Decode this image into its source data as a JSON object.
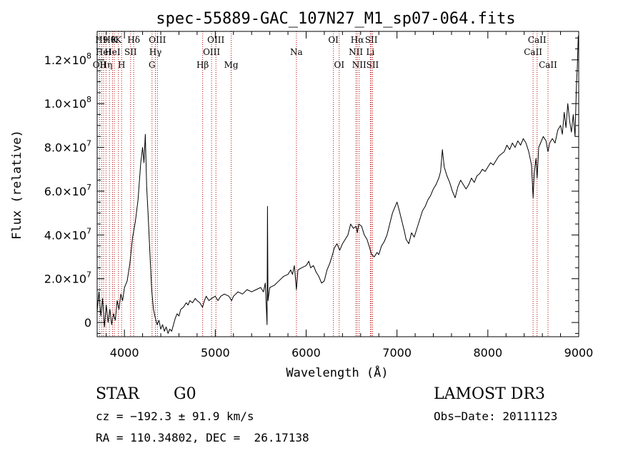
{
  "chart_data": {
    "type": "line",
    "title": "spec-55889-GAC_107N27_M1_sp07-064.fits",
    "xlabel": "Wavelength (Å)",
    "ylabel": "Flux (relative)",
    "xlim": [
      3700,
      9000
    ],
    "ylim": [
      -6500000,
      133000000
    ],
    "x_ticks": [
      {
        "value": 4000,
        "label": "4000"
      },
      {
        "value": 5000,
        "label": "5000"
      },
      {
        "value": 6000,
        "label": "6000"
      },
      {
        "value": 7000,
        "label": "7000"
      },
      {
        "value": 8000,
        "label": "8000"
      },
      {
        "value": 9000,
        "label": "9000"
      }
    ],
    "y_ticks": [
      {
        "value": 0,
        "mantissa": "0",
        "exp": ""
      },
      {
        "value": 20000000,
        "mantissa": "2.0×10",
        "exp": "7"
      },
      {
        "value": 40000000,
        "mantissa": "4.0×10",
        "exp": "7"
      },
      {
        "value": 60000000,
        "mantissa": "6.0×10",
        "exp": "7"
      },
      {
        "value": 80000000,
        "mantissa": "8.0×10",
        "exp": "7"
      },
      {
        "value": 100000000,
        "mantissa": "1.0×10",
        "exp": "8"
      },
      {
        "value": 120000000,
        "mantissa": "1.2×10",
        "exp": "8"
      }
    ],
    "series": [
      {
        "name": "flux",
        "points": [
          [
            3700,
            5000000
          ],
          [
            3720,
            14000000
          ],
          [
            3740,
            3000000
          ],
          [
            3760,
            11000000
          ],
          [
            3780,
            -2000000
          ],
          [
            3800,
            8000000
          ],
          [
            3820,
            0
          ],
          [
            3840,
            6000000
          ],
          [
            3860,
            -1000000
          ],
          [
            3880,
            4000000
          ],
          [
            3900,
            1000000
          ],
          [
            3920,
            10000000
          ],
          [
            3940,
            6000000
          ],
          [
            3960,
            13000000
          ],
          [
            3980,
            10000000
          ],
          [
            4000,
            16000000
          ],
          [
            4030,
            19000000
          ],
          [
            4060,
            27000000
          ],
          [
            4090,
            39000000
          ],
          [
            4120,
            46000000
          ],
          [
            4150,
            56000000
          ],
          [
            4180,
            73000000
          ],
          [
            4200,
            80000000
          ],
          [
            4215,
            73000000
          ],
          [
            4230,
            86000000
          ],
          [
            4245,
            62000000
          ],
          [
            4260,
            50000000
          ],
          [
            4280,
            32000000
          ],
          [
            4300,
            15000000
          ],
          [
            4320,
            6000000
          ],
          [
            4340,
            2000000
          ],
          [
            4360,
            -1000000
          ],
          [
            4380,
            1000000
          ],
          [
            4400,
            -3000000
          ],
          [
            4420,
            -1000000
          ],
          [
            4440,
            -4000000
          ],
          [
            4460,
            -2000000
          ],
          [
            4480,
            -5000000
          ],
          [
            4500,
            -3000000
          ],
          [
            4520,
            -4000000
          ],
          [
            4540,
            -1000000
          ],
          [
            4560,
            2000000
          ],
          [
            4580,
            4000000
          ],
          [
            4600,
            3000000
          ],
          [
            4620,
            6000000
          ],
          [
            4650,
            7000000
          ],
          [
            4680,
            9000000
          ],
          [
            4700,
            8000000
          ],
          [
            4720,
            10000000
          ],
          [
            4750,
            9000000
          ],
          [
            4780,
            11000000
          ],
          [
            4800,
            10000000
          ],
          [
            4830,
            9000000
          ],
          [
            4860,
            7000000
          ],
          [
            4880,
            10000000
          ],
          [
            4900,
            12000000
          ],
          [
            4930,
            10000000
          ],
          [
            4960,
            11000000
          ],
          [
            5000,
            12000000
          ],
          [
            5030,
            10000000
          ],
          [
            5060,
            12000000
          ],
          [
            5100,
            13000000
          ],
          [
            5150,
            12000000
          ],
          [
            5180,
            10000000
          ],
          [
            5200,
            12000000
          ],
          [
            5250,
            14000000
          ],
          [
            5300,
            13000000
          ],
          [
            5350,
            15000000
          ],
          [
            5400,
            14000000
          ],
          [
            5450,
            15000000
          ],
          [
            5500,
            16000000
          ],
          [
            5530,
            14000000
          ],
          [
            5550,
            18000000
          ],
          [
            5570,
            -1000000
          ],
          [
            5575,
            53000000
          ],
          [
            5580,
            10000000
          ],
          [
            5600,
            16000000
          ],
          [
            5650,
            17000000
          ],
          [
            5700,
            19000000
          ],
          [
            5750,
            21000000
          ],
          [
            5800,
            22000000
          ],
          [
            5830,
            24000000
          ],
          [
            5850,
            22000000
          ],
          [
            5870,
            26000000
          ],
          [
            5893,
            15000000
          ],
          [
            5910,
            24000000
          ],
          [
            5950,
            25000000
          ],
          [
            6000,
            26000000
          ],
          [
            6030,
            28000000
          ],
          [
            6050,
            25000000
          ],
          [
            6080,
            26000000
          ],
          [
            6110,
            23000000
          ],
          [
            6140,
            21000000
          ],
          [
            6170,
            18000000
          ],
          [
            6200,
            19000000
          ],
          [
            6230,
            24000000
          ],
          [
            6260,
            27000000
          ],
          [
            6290,
            31000000
          ],
          [
            6310,
            34000000
          ],
          [
            6340,
            36000000
          ],
          [
            6370,
            33000000
          ],
          [
            6400,
            36000000
          ],
          [
            6430,
            38000000
          ],
          [
            6460,
            40000000
          ],
          [
            6490,
            45000000
          ],
          [
            6520,
            43000000
          ],
          [
            6550,
            44000000
          ],
          [
            6563,
            41000000
          ],
          [
            6580,
            45000000
          ],
          [
            6610,
            44000000
          ],
          [
            6640,
            40000000
          ],
          [
            6670,
            38000000
          ],
          [
            6700,
            34000000
          ],
          [
            6720,
            31000000
          ],
          [
            6750,
            30000000
          ],
          [
            6780,
            32000000
          ],
          [
            6800,
            31000000
          ],
          [
            6830,
            35000000
          ],
          [
            6860,
            37000000
          ],
          [
            6890,
            40000000
          ],
          [
            6920,
            45000000
          ],
          [
            6950,
            50000000
          ],
          [
            6980,
            53000000
          ],
          [
            7000,
            55000000
          ],
          [
            7020,
            52000000
          ],
          [
            7050,
            47000000
          ],
          [
            7080,
            42000000
          ],
          [
            7100,
            38000000
          ],
          [
            7130,
            36000000
          ],
          [
            7160,
            41000000
          ],
          [
            7190,
            39000000
          ],
          [
            7220,
            43000000
          ],
          [
            7250,
            47000000
          ],
          [
            7280,
            51000000
          ],
          [
            7310,
            53000000
          ],
          [
            7340,
            56000000
          ],
          [
            7370,
            58000000
          ],
          [
            7400,
            61000000
          ],
          [
            7430,
            63000000
          ],
          [
            7460,
            66000000
          ],
          [
            7480,
            69000000
          ],
          [
            7500,
            79000000
          ],
          [
            7520,
            71000000
          ],
          [
            7550,
            67000000
          ],
          [
            7580,
            64000000
          ],
          [
            7610,
            60000000
          ],
          [
            7640,
            57000000
          ],
          [
            7670,
            62000000
          ],
          [
            7700,
            65000000
          ],
          [
            7730,
            63000000
          ],
          [
            7760,
            61000000
          ],
          [
            7790,
            63000000
          ],
          [
            7820,
            66000000
          ],
          [
            7850,
            64000000
          ],
          [
            7880,
            67000000
          ],
          [
            7910,
            68000000
          ],
          [
            7940,
            70000000
          ],
          [
            7970,
            69000000
          ],
          [
            8000,
            71000000
          ],
          [
            8030,
            73000000
          ],
          [
            8060,
            72000000
          ],
          [
            8090,
            74000000
          ],
          [
            8120,
            76000000
          ],
          [
            8150,
            77000000
          ],
          [
            8180,
            78000000
          ],
          [
            8210,
            81000000
          ],
          [
            8240,
            79000000
          ],
          [
            8270,
            82000000
          ],
          [
            8300,
            80000000
          ],
          [
            8330,
            83000000
          ],
          [
            8360,
            81000000
          ],
          [
            8390,
            84000000
          ],
          [
            8420,
            82000000
          ],
          [
            8450,
            78000000
          ],
          [
            8480,
            72000000
          ],
          [
            8498,
            57000000
          ],
          [
            8510,
            68000000
          ],
          [
            8530,
            75000000
          ],
          [
            8542,
            66000000
          ],
          [
            8560,
            80000000
          ],
          [
            8580,
            82000000
          ],
          [
            8610,
            85000000
          ],
          [
            8640,
            83000000
          ],
          [
            8662,
            78000000
          ],
          [
            8680,
            82000000
          ],
          [
            8710,
            84000000
          ],
          [
            8740,
            82000000
          ],
          [
            8770,
            88000000
          ],
          [
            8800,
            90000000
          ],
          [
            8820,
            86000000
          ],
          [
            8840,
            96000000
          ],
          [
            8860,
            89000000
          ],
          [
            8880,
            100000000
          ],
          [
            8900,
            92000000
          ],
          [
            8920,
            87000000
          ],
          [
            8940,
            95000000
          ],
          [
            8960,
            85000000
          ],
          [
            8975,
            108000000
          ],
          [
            8985,
            117000000
          ],
          [
            8995,
            131000000
          ]
        ]
      }
    ],
    "lines": [
      {
        "wavelength": 3727,
        "label": "OII",
        "row": 2
      },
      {
        "wavelength": 3750,
        "label": "H9",
        "row": 0
      },
      {
        "wavelength": 3771,
        "label": "HeI",
        "row": 1
      },
      {
        "wavelength": 3797,
        "label": "Hη",
        "row": 2
      },
      {
        "wavelength": 3835,
        "label": "Hθ",
        "row": 0
      },
      {
        "wavelength": 3869,
        "label": "HeI",
        "row": 1
      },
      {
        "wavelength": 3889,
        "label": "K",
        "row": 0
      },
      {
        "wavelength": 3934,
        "label": "K",
        "row": 0
      },
      {
        "wavelength": 3969,
        "label": "H",
        "row": 2
      },
      {
        "wavelength": 4068,
        "label": "SII",
        "row": 1
      },
      {
        "wavelength": 4102,
        "label": "Hδ",
        "row": 0
      },
      {
        "wavelength": 4304,
        "label": "G",
        "row": 2
      },
      {
        "wavelength": 4341,
        "label": "Hγ",
        "row": 1
      },
      {
        "wavelength": 4363,
        "label": "OIII",
        "row": 0
      },
      {
        "wavelength": 4861,
        "label": "Hβ",
        "row": 2
      },
      {
        "wavelength": 4959,
        "label": "OIII",
        "row": 1
      },
      {
        "wavelength": 5007,
        "label": "OIII",
        "row": 0
      },
      {
        "wavelength": 5175,
        "label": "Mg",
        "row": 2
      },
      {
        "wavelength": 5893,
        "label": "Na",
        "row": 1
      },
      {
        "wavelength": 6300,
        "label": "OI",
        "row": 0
      },
      {
        "wavelength": 6364,
        "label": "OI",
        "row": 2
      },
      {
        "wavelength": 6548,
        "label": "NII",
        "row": 1
      },
      {
        "wavelength": 6563,
        "label": "Hα",
        "row": 0
      },
      {
        "wavelength": 6584,
        "label": "NII",
        "row": 2
      },
      {
        "wavelength": 6707,
        "label": "Li",
        "row": 1
      },
      {
        "wavelength": 6717,
        "label": "SII",
        "row": 0
      },
      {
        "wavelength": 6731,
        "label": "SII",
        "row": 2
      },
      {
        "wavelength": 8498,
        "label": "CaII",
        "row": 1
      },
      {
        "wavelength": 8542,
        "label": "CaII",
        "row": 0
      },
      {
        "wavelength": 8662,
        "label": "CaII",
        "row": 2
      }
    ]
  },
  "info": {
    "class": "STAR",
    "subclass": "G0",
    "survey": "LAMOST DR3",
    "cz": "cz = −192.3 ± 91.9 km/s",
    "obs_date": "Obs−Date: 20111123",
    "coords": "RA = 110.34802, DEC =  26.17138"
  },
  "colors": {
    "line_marker": "#b40000",
    "spectrum": "#000000"
  }
}
